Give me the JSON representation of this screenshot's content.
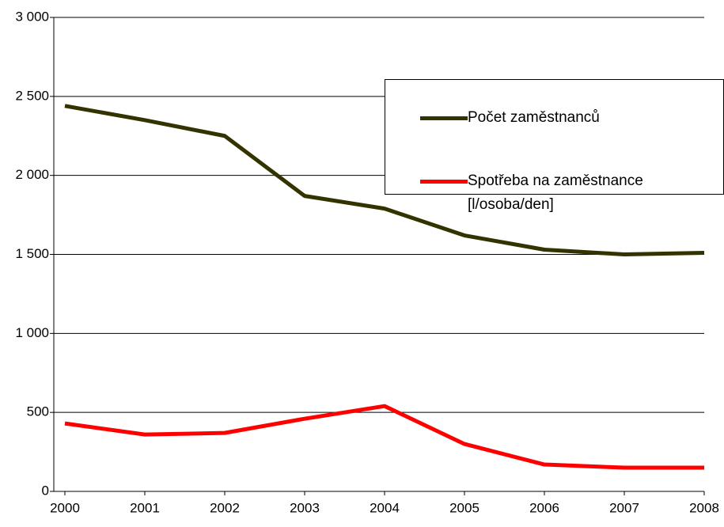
{
  "chart_data": {
    "type": "line",
    "categories": [
      "2000",
      "2001",
      "2002",
      "2003",
      "2004",
      "2005",
      "2006",
      "2007",
      "2008"
    ],
    "series": [
      {
        "name": "Počet zaměstnanců",
        "color": "#333300",
        "values": [
          2440,
          2350,
          2250,
          1870,
          1790,
          1620,
          1530,
          1500,
          1510
        ]
      },
      {
        "name": "Spotřeba na zaměstnance [l/osoba/den]",
        "color": "#ff0000",
        "values": [
          430,
          360,
          370,
          460,
          540,
          300,
          170,
          150,
          150
        ]
      }
    ],
    "ylim": [
      0,
      3000
    ],
    "yticks": [
      0,
      500,
      {
        "value": 1000,
        "label": "1 000"
      },
      {
        "value": 1500,
        "label": "1 500"
      },
      {
        "value": 2000,
        "label": "2 000"
      },
      {
        "value": 2500,
        "label": "2 500"
      },
      {
        "value": 3000,
        "label": "3 000"
      }
    ],
    "grid": true,
    "legend": "upper right"
  }
}
